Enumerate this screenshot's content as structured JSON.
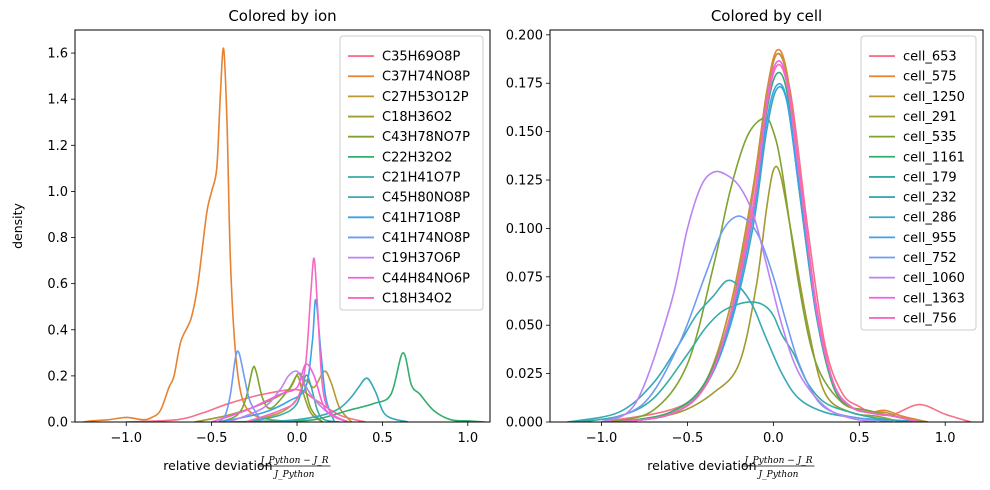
{
  "chart_data": [
    {
      "type": "line",
      "subtype": "kde",
      "title": "Colored by ion",
      "xlabel_text": "relative deviation",
      "xlabel_num": "J_Python − J_R",
      "xlabel_den": "J_Python",
      "ylabel": "density",
      "xlim": [
        -1.3,
        1.13
      ],
      "ylim": [
        0,
        1.7
      ],
      "xticks": [
        -1.0,
        -0.5,
        0.0,
        0.5,
        1.0
      ],
      "xtick_labels": [
        "−1.0",
        "−0.5",
        "0.0",
        "0.5",
        "1.0"
      ],
      "yticks": [
        0.0,
        0.2,
        0.4,
        0.6,
        0.8,
        1.0,
        1.2,
        1.4,
        1.6
      ],
      "ytick_labels": [
        "0.0",
        "0.2",
        "0.4",
        "0.6",
        "0.8",
        "1.0",
        "1.2",
        "1.4",
        "1.6"
      ],
      "legend_position": "top-right",
      "series": [
        {
          "name": "C35H69O8P",
          "color": "#f77189",
          "x": [
            -1.0,
            -0.7,
            -0.55,
            -0.4,
            -0.2,
            0.0,
            0.1,
            0.25,
            0.4
          ],
          "y": [
            0.0,
            0.01,
            0.04,
            0.08,
            0.12,
            0.14,
            0.1,
            0.03,
            0.0
          ]
        },
        {
          "name": "C37H74NO8P",
          "color": "#e68332",
          "x": [
            -1.25,
            -1.2,
            -1.1,
            -1.0,
            -0.9,
            -0.85,
            -0.8,
            -0.75,
            -0.72,
            -0.68,
            -0.62,
            -0.58,
            -0.53,
            -0.5,
            -0.47,
            -0.45,
            -0.43,
            -0.41,
            -0.39,
            -0.36,
            -0.32,
            -0.25,
            -0.15,
            0.0
          ],
          "y": [
            0.0,
            0.005,
            0.01,
            0.02,
            0.01,
            0.02,
            0.05,
            0.15,
            0.2,
            0.35,
            0.45,
            0.6,
            0.9,
            1.0,
            1.1,
            1.4,
            1.62,
            1.3,
            0.7,
            0.3,
            0.1,
            0.03,
            0.01,
            0.0
          ]
        },
        {
          "name": "C27H53O12P",
          "color": "#bb9832",
          "x": [
            -0.3,
            -0.1,
            0.0,
            0.05,
            0.1,
            0.16,
            0.2,
            0.25,
            0.32
          ],
          "y": [
            0.0,
            0.04,
            0.1,
            0.18,
            0.15,
            0.22,
            0.17,
            0.06,
            0.0
          ]
        },
        {
          "name": "C18H36O2",
          "color": "#a09b31",
          "x": [
            -0.6,
            -0.4,
            -0.2,
            -0.05,
            0.0,
            0.03,
            0.08,
            0.15
          ],
          "y": [
            0.0,
            0.03,
            0.08,
            0.14,
            0.2,
            0.14,
            0.04,
            0.0
          ]
        },
        {
          "name": "C43H78NO7P",
          "color": "#7ea331",
          "x": [
            -0.45,
            -0.35,
            -0.3,
            -0.26,
            -0.24,
            -0.2,
            -0.15,
            -0.05,
            0.02,
            0.08,
            0.15
          ],
          "y": [
            0.0,
            0.03,
            0.1,
            0.23,
            0.22,
            0.1,
            0.06,
            0.14,
            0.21,
            0.06,
            0.0
          ]
        },
        {
          "name": "C22H32O2",
          "color": "#34ae6e",
          "x": [
            -0.4,
            -0.1,
            0.1,
            0.3,
            0.45,
            0.55,
            0.62,
            0.67,
            0.72,
            0.8,
            0.9,
            1.0,
            1.1
          ],
          "y": [
            0.0,
            0.005,
            0.01,
            0.05,
            0.08,
            0.12,
            0.3,
            0.16,
            0.12,
            0.05,
            0.01,
            0.005,
            0.0
          ]
        },
        {
          "name": "C21H41O7P",
          "color": "#36ada4",
          "x": [
            -0.3,
            -0.1,
            0.0,
            0.05,
            0.08,
            0.12,
            0.16,
            0.25
          ],
          "y": [
            0.0,
            0.03,
            0.08,
            0.2,
            0.16,
            0.05,
            0.01,
            0.0
          ]
        },
        {
          "name": "C45H80NO8P",
          "color": "#38a9b6",
          "x": [
            -0.2,
            0.0,
            0.15,
            0.25,
            0.32,
            0.36,
            0.41,
            0.46,
            0.52,
            0.65
          ],
          "y": [
            0.0,
            0.01,
            0.03,
            0.06,
            0.11,
            0.15,
            0.19,
            0.13,
            0.03,
            0.0
          ]
        },
        {
          "name": "C41H71O8P",
          "color": "#3ba3ec",
          "x": [
            -0.45,
            -0.2,
            -0.05,
            0.05,
            0.09,
            0.11,
            0.14,
            0.17,
            0.22
          ],
          "y": [
            0.0,
            0.04,
            0.09,
            0.15,
            0.35,
            0.53,
            0.3,
            0.1,
            0.0
          ]
        },
        {
          "name": "C41H74NO8P",
          "color": "#6e9bf4",
          "x": [
            -0.46,
            -0.42,
            -0.39,
            -0.36,
            -0.34,
            -0.31,
            -0.28,
            -0.24,
            -0.2
          ],
          "y": [
            0.0,
            0.03,
            0.12,
            0.28,
            0.3,
            0.2,
            0.1,
            0.04,
            0.0
          ]
        },
        {
          "name": "C19H37O6P",
          "color": "#bb83f4",
          "x": [
            -0.4,
            -0.2,
            -0.1,
            -0.05,
            0.0,
            0.04,
            0.1,
            0.2,
            0.3
          ],
          "y": [
            0.0,
            0.06,
            0.14,
            0.2,
            0.22,
            0.17,
            0.1,
            0.03,
            0.0
          ]
        },
        {
          "name": "C44H84NO6P",
          "color": "#f45fe2",
          "x": [
            -0.5,
            -0.3,
            -0.1,
            0.0,
            0.05,
            0.1,
            0.15,
            0.2,
            0.3
          ],
          "y": [
            0.0,
            0.05,
            0.12,
            0.15,
            0.25,
            0.2,
            0.08,
            0.03,
            0.0
          ]
        },
        {
          "name": "C18H34O2",
          "color": "#f668c2",
          "x": [
            -0.3,
            -0.1,
            0.0,
            0.05,
            0.08,
            0.1,
            0.12,
            0.15,
            0.2,
            0.3
          ],
          "y": [
            0.0,
            0.05,
            0.1,
            0.25,
            0.55,
            0.71,
            0.5,
            0.15,
            0.04,
            0.0
          ]
        }
      ]
    },
    {
      "type": "line",
      "subtype": "kde",
      "title": "Colored by cell",
      "xlabel_text": "relative deviation",
      "xlabel_num": "J_Python − J_R",
      "xlabel_den": "J_Python",
      "ylabel": "",
      "xlim": [
        -1.3,
        1.22
      ],
      "ylim": [
        0,
        0.2025
      ],
      "xticks": [
        -1.0,
        -0.5,
        0.0,
        0.5,
        1.0
      ],
      "xtick_labels": [
        "−1.0",
        "−0.5",
        "0.0",
        "0.5",
        "1.0"
      ],
      "yticks": [
        0.0,
        0.025,
        0.05,
        0.075,
        0.1,
        0.125,
        0.15,
        0.175,
        0.2
      ],
      "ytick_labels": [
        "0.000",
        "0.025",
        "0.050",
        "0.075",
        "0.100",
        "0.125",
        "0.150",
        "0.175",
        "0.200"
      ],
      "legend_position": "top-right",
      "series": [
        {
          "name": "cell_653",
          "color": "#f77189",
          "x": [
            -1.0,
            -0.5,
            -0.3,
            -0.15,
            -0.05,
            0.02,
            0.1,
            0.2,
            0.3,
            0.4,
            0.5,
            0.6,
            0.7,
            0.85,
            1.0,
            1.15
          ],
          "y": [
            0.0,
            0.01,
            0.04,
            0.1,
            0.16,
            0.19,
            0.17,
            0.1,
            0.04,
            0.015,
            0.008,
            0.004,
            0.004,
            0.009,
            0.004,
            0.0
          ]
        },
        {
          "name": "cell_575",
          "color": "#e68332",
          "x": [
            -0.9,
            -0.6,
            -0.4,
            -0.25,
            -0.12,
            -0.04,
            0.02,
            0.08,
            0.15,
            0.25,
            0.35,
            0.45,
            0.55,
            0.65,
            0.75,
            0.9
          ],
          "y": [
            0.0,
            0.005,
            0.02,
            0.06,
            0.12,
            0.17,
            0.192,
            0.18,
            0.13,
            0.06,
            0.02,
            0.008,
            0.005,
            0.006,
            0.003,
            0.0
          ]
        },
        {
          "name": "cell_1250",
          "color": "#bb9832",
          "x": [
            -0.9,
            -0.6,
            -0.4,
            -0.25,
            -0.12,
            -0.04,
            0.02,
            0.08,
            0.15,
            0.25,
            0.35,
            0.45,
            0.55,
            0.65,
            0.75,
            0.9
          ],
          "y": [
            0.0,
            0.005,
            0.02,
            0.06,
            0.12,
            0.168,
            0.19,
            0.178,
            0.128,
            0.058,
            0.02,
            0.008,
            0.005,
            0.005,
            0.002,
            0.0
          ]
        },
        {
          "name": "cell_291",
          "color": "#a09b31",
          "x": [
            -0.85,
            -0.55,
            -0.35,
            -0.2,
            -0.1,
            -0.04,
            0.0,
            0.04,
            0.1,
            0.2,
            0.3,
            0.45,
            0.6,
            0.75
          ],
          "y": [
            0.0,
            0.005,
            0.015,
            0.03,
            0.07,
            0.11,
            0.13,
            0.128,
            0.1,
            0.05,
            0.015,
            0.005,
            0.003,
            0.0
          ]
        },
        {
          "name": "cell_535",
          "color": "#7ea331",
          "x": [
            -0.95,
            -0.7,
            -0.5,
            -0.35,
            -0.25,
            -0.15,
            -0.05,
            0.0,
            0.05,
            0.15,
            0.25,
            0.4,
            0.55,
            0.7,
            0.85
          ],
          "y": [
            0.0,
            0.006,
            0.03,
            0.08,
            0.12,
            0.148,
            0.157,
            0.15,
            0.13,
            0.07,
            0.03,
            0.01,
            0.006,
            0.003,
            0.0
          ]
        },
        {
          "name": "cell_1161",
          "color": "#34ae6e",
          "x": [
            -0.9,
            -0.6,
            -0.4,
            -0.25,
            -0.12,
            -0.04,
            0.02,
            0.08,
            0.15,
            0.25,
            0.35,
            0.45,
            0.55,
            0.7,
            0.85
          ],
          "y": [
            0.0,
            0.005,
            0.02,
            0.055,
            0.11,
            0.16,
            0.18,
            0.17,
            0.12,
            0.055,
            0.018,
            0.008,
            0.005,
            0.003,
            0.0
          ]
        },
        {
          "name": "cell_179",
          "color": "#36ada4",
          "x": [
            -1.15,
            -0.9,
            -0.7,
            -0.5,
            -0.4,
            -0.3,
            -0.2,
            -0.12,
            -0.05,
            0.0,
            0.05,
            0.12,
            0.2,
            0.3,
            0.45,
            0.6,
            0.8
          ],
          "y": [
            0.0,
            0.003,
            0.012,
            0.035,
            0.048,
            0.057,
            0.061,
            0.062,
            0.06,
            0.055,
            0.045,
            0.035,
            0.02,
            0.01,
            0.005,
            0.002,
            0.0
          ]
        },
        {
          "name": "cell_232",
          "color": "#38a9b6",
          "x": [
            -1.2,
            -0.9,
            -0.7,
            -0.55,
            -0.45,
            -0.35,
            -0.27,
            -0.2,
            -0.12,
            -0.05,
            0.05,
            0.15,
            0.3,
            0.5,
            0.7,
            0.9
          ],
          "y": [
            0.0,
            0.005,
            0.02,
            0.04,
            0.055,
            0.065,
            0.073,
            0.07,
            0.06,
            0.045,
            0.025,
            0.012,
            0.005,
            0.002,
            0.001,
            0.0
          ]
        },
        {
          "name": "cell_286",
          "color": "#39a8c6",
          "x": [
            -0.9,
            -0.6,
            -0.4,
            -0.25,
            -0.12,
            -0.04,
            0.02,
            0.08,
            0.15,
            0.25,
            0.35,
            0.45,
            0.55,
            0.7,
            0.85
          ],
          "y": [
            0.0,
            0.004,
            0.018,
            0.05,
            0.1,
            0.15,
            0.172,
            0.165,
            0.12,
            0.055,
            0.02,
            0.008,
            0.005,
            0.003,
            0.0
          ]
        },
        {
          "name": "cell_955",
          "color": "#3ba3ec",
          "x": [
            -0.9,
            -0.6,
            -0.4,
            -0.25,
            -0.12,
            -0.04,
            0.02,
            0.08,
            0.15,
            0.25,
            0.35,
            0.45,
            0.55,
            0.7,
            0.85
          ],
          "y": [
            0.0,
            0.004,
            0.018,
            0.052,
            0.105,
            0.155,
            0.174,
            0.166,
            0.122,
            0.057,
            0.02,
            0.008,
            0.005,
            0.003,
            0.0
          ]
        },
        {
          "name": "cell_752",
          "color": "#6e9bf4",
          "x": [
            -1.0,
            -0.75,
            -0.55,
            -0.4,
            -0.3,
            -0.22,
            -0.15,
            -0.08,
            0.0,
            0.08,
            0.15,
            0.25,
            0.35,
            0.5,
            0.7
          ],
          "y": [
            0.0,
            0.01,
            0.04,
            0.075,
            0.098,
            0.106,
            0.104,
            0.095,
            0.075,
            0.05,
            0.03,
            0.012,
            0.005,
            0.002,
            0.0
          ]
        },
        {
          "name": "cell_1060",
          "color": "#bb83f4",
          "x": [
            -1.0,
            -0.8,
            -0.6,
            -0.5,
            -0.42,
            -0.35,
            -0.28,
            -0.2,
            -0.12,
            -0.05,
            0.05,
            0.15,
            0.3,
            0.45,
            0.6
          ],
          "y": [
            0.0,
            0.01,
            0.06,
            0.1,
            0.122,
            0.129,
            0.128,
            0.122,
            0.108,
            0.085,
            0.05,
            0.025,
            0.008,
            0.002,
            0.0
          ]
        },
        {
          "name": "cell_1363",
          "color": "#f45fe2",
          "x": [
            -0.9,
            -0.6,
            -0.4,
            -0.25,
            -0.12,
            -0.04,
            0.02,
            0.08,
            0.15,
            0.25,
            0.35,
            0.45,
            0.55,
            0.7,
            0.85
          ],
          "y": [
            0.0,
            0.004,
            0.018,
            0.055,
            0.11,
            0.165,
            0.186,
            0.176,
            0.13,
            0.06,
            0.02,
            0.008,
            0.005,
            0.003,
            0.0
          ]
        },
        {
          "name": "cell_756",
          "color": "#f668c2",
          "x": [
            -0.9,
            -0.6,
            -0.4,
            -0.25,
            -0.12,
            -0.04,
            0.02,
            0.08,
            0.15,
            0.25,
            0.35,
            0.45,
            0.55,
            0.7,
            0.85
          ],
          "y": [
            0.0,
            0.004,
            0.018,
            0.055,
            0.108,
            0.162,
            0.184,
            0.174,
            0.128,
            0.058,
            0.02,
            0.008,
            0.005,
            0.003,
            0.0
          ]
        }
      ]
    }
  ]
}
